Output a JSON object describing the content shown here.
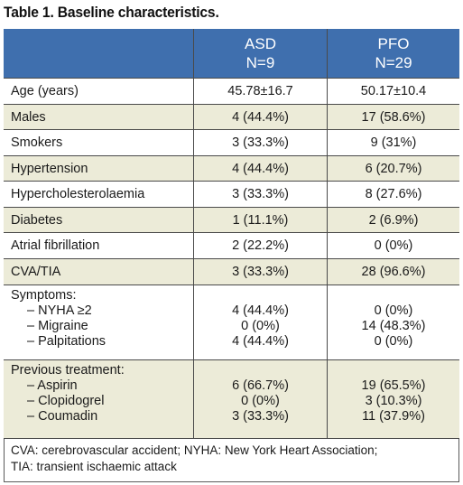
{
  "caption": "Table 1. Baseline characteristics.",
  "columns": {
    "asd": {
      "line1": "ASD",
      "line2": "N=9"
    },
    "pfo": {
      "line1": "PFO",
      "line2": "N=29"
    }
  },
  "rows": [
    {
      "label": "Age (years)",
      "asd": "45.78±16.7",
      "pfo": "50.17±10.4"
    },
    {
      "label": "Males",
      "asd": "4 (44.4%)",
      "pfo": "17 (58.6%)"
    },
    {
      "label": "Smokers",
      "asd": "3 (33.3%)",
      "pfo": "9 (31%)"
    },
    {
      "label": "Hypertension",
      "asd": "4 (44.4%)",
      "pfo": "6 (20.7%)"
    },
    {
      "label": "Hypercholesterolaemia",
      "asd": "3 (33.3%)",
      "pfo": "8 (27.6%)"
    },
    {
      "label": "Diabetes",
      "asd": "1 (11.1%)",
      "pfo": "2 (6.9%)"
    },
    {
      "label": "Atrial fibrillation",
      "asd": "2 (22.2%)",
      "pfo": "0 (0%)"
    },
    {
      "label": "CVA/TIA",
      "asd": "3 (33.3%)",
      "pfo": "28 (96.6%)"
    }
  ],
  "symptoms": {
    "label": "Symptoms:",
    "items": [
      {
        "label": "– NYHA ≥2",
        "asd": "4 (44.4%)",
        "pfo": "0 (0%)"
      },
      {
        "label": "– Migraine",
        "asd": "0 (0%)",
        "pfo": "14 (48.3%)"
      },
      {
        "label": "– Palpitations",
        "asd": "4 (44.4%)",
        "pfo": "0 (0%)"
      }
    ]
  },
  "treatment": {
    "label": "Previous treatment:",
    "items": [
      {
        "label": "– Aspirin",
        "asd": "6 (66.7%)",
        "pfo": "19 (65.5%)"
      },
      {
        "label": "– Clopidogrel",
        "asd": "0 (0%)",
        "pfo": "3 (10.3%)"
      },
      {
        "label": "– Coumadin",
        "asd": "3 (33.3%)",
        "pfo": "11 (37.9%)"
      }
    ]
  },
  "footnote": {
    "line1": "CVA: cerebrovascular accident; NYHA: New York Heart Association;",
    "line2": "TIA: transient ischaemic attack"
  },
  "colors": {
    "header_bg": "#3f6fae",
    "band_bg": "#ecebd8"
  }
}
